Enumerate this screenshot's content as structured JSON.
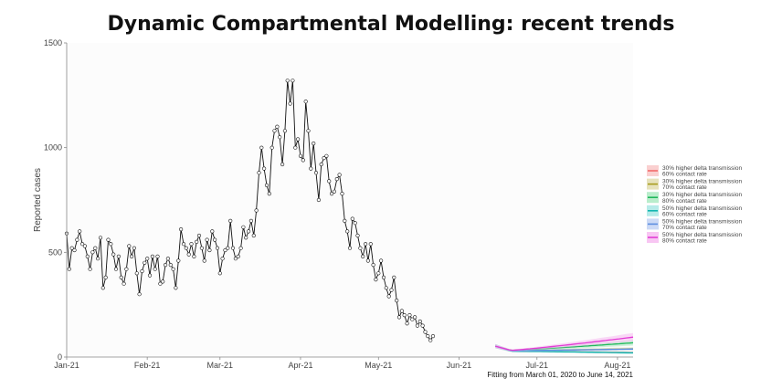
{
  "chart_data": {
    "type": "line",
    "title": "Dynamic Compartmental Modelling: recent trends",
    "ylabel": "Reported cases",
    "xlabel": "",
    "ylim": [
      0,
      1500
    ],
    "yticks": [
      0,
      500,
      1000,
      1500
    ],
    "xticks": [
      {
        "label": "Jan-21",
        "day": 0
      },
      {
        "label": "Feb-21",
        "day": 31
      },
      {
        "label": "Mar-21",
        "day": 59
      },
      {
        "label": "Apr-21",
        "day": 90
      },
      {
        "label": "May-21",
        "day": 120
      },
      {
        "label": "Jun-21",
        "day": 151
      },
      {
        "label": "Jul-21",
        "day": 181
      },
      {
        "label": "Aug-21",
        "day": 212
      }
    ],
    "xlim_days": [
      0,
      218
    ],
    "caption": "Fitting from March 01, 2020 to June 14, 2021",
    "grid": false,
    "legend_position": "right",
    "observed": {
      "start_date": "2021-01-01",
      "values": [
        590,
        420,
        520,
        510,
        560,
        600,
        540,
        530,
        480,
        420,
        500,
        520,
        470,
        570,
        330,
        380,
        560,
        540,
        490,
        420,
        480,
        380,
        350,
        420,
        530,
        480,
        520,
        400,
        300,
        410,
        450,
        470,
        390,
        480,
        420,
        480,
        350,
        360,
        440,
        470,
        440,
        420,
        330,
        460,
        610,
        540,
        520,
        490,
        540,
        480,
        550,
        580,
        520,
        460,
        560,
        510,
        600,
        560,
        520,
        400,
        470,
        510,
        520,
        650,
        520,
        470,
        480,
        520,
        620,
        570,
        600,
        650,
        580,
        700,
        880,
        1000,
        900,
        820,
        780,
        1000,
        1080,
        1100,
        1050,
        920,
        1080,
        1320,
        1210,
        1320,
        1000,
        1040,
        960,
        940,
        1220,
        1080,
        900,
        1020,
        880,
        750,
        920,
        950,
        960,
        840,
        780,
        790,
        850,
        870,
        780,
        650,
        600,
        520,
        660,
        640,
        580,
        520,
        480,
        540,
        460,
        540,
        440,
        370,
        400,
        460,
        380,
        330,
        290,
        320,
        380,
        270,
        190,
        220,
        200,
        160,
        200,
        180,
        190,
        150,
        170,
        150,
        120,
        100,
        80,
        100
      ],
      "marker": "circle",
      "color": "#111111"
    },
    "series": [
      {
        "name": "30% higher delta transmission\n60% contact rate",
        "color": "#f26b6b",
        "band": "#f9c4c4",
        "x_days": [
          165,
          218
        ],
        "values_start": 52,
        "values_min": 28,
        "values_end": 22
      },
      {
        "name": "30% higher delta transmission\n70% contact rate",
        "color": "#a89c1e",
        "band": "#e0dbaa",
        "x_days": [
          165,
          218
        ],
        "values_start": 52,
        "values_min": 30,
        "values_end": 40
      },
      {
        "name": "30% higher delta transmission\n80% contact rate",
        "color": "#1fb85a",
        "band": "#a7e8bf",
        "x_days": [
          165,
          218
        ],
        "values_start": 52,
        "values_min": 32,
        "values_end": 68
      },
      {
        "name": "50% higher delta transmission\n60% contact rate",
        "color": "#12b6b0",
        "band": "#a4e6e3",
        "x_days": [
          165,
          218
        ],
        "values_start": 52,
        "values_min": 28,
        "values_end": 20
      },
      {
        "name": "50% higher delta transmission\n70% contact rate",
        "color": "#5e8fe0",
        "band": "#bfd1f4",
        "x_days": [
          165,
          218
        ],
        "values_start": 52,
        "values_min": 30,
        "values_end": 38
      },
      {
        "name": "50% higher delta transmission\n80% contact rate",
        "color": "#e23bd4",
        "band": "#f6b8f0",
        "x_days": [
          165,
          218
        ],
        "values_start": 52,
        "values_min": 32,
        "values_end": 95
      }
    ]
  }
}
